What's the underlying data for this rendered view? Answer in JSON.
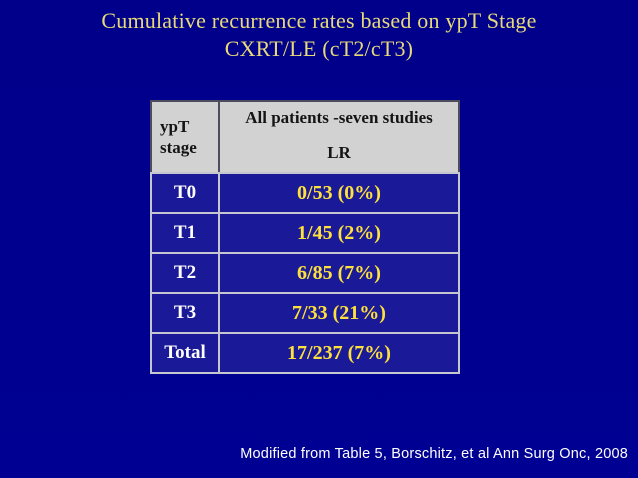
{
  "slide": {
    "title_line1": "Cumulative recurrence rates based on ypT Stage",
    "title_line2": "CXRT/LE (cT2/cT3)",
    "citation": "Modified from Table 5, Borschitz, et al Ann Surg Onc, 2008"
  },
  "table": {
    "header": {
      "col1_line1": "ypT",
      "col1_line2": "stage",
      "col2_line1": "All patients -seven studies",
      "col2_line2": "LR"
    },
    "rows": [
      {
        "stage": "T0",
        "value": "0/53 (0%)"
      },
      {
        "stage": "T1",
        "value": "1/45 (2%)"
      },
      {
        "stage": "T2",
        "value": "6/85 (7%)"
      },
      {
        "stage": "T3",
        "value": "7/33 (21%)"
      },
      {
        "stage": "Total",
        "value": "17/237 (7%)"
      }
    ]
  },
  "colors": {
    "slide_background": "#00008e",
    "cell_blue": "#1a1a99",
    "header_gray": "#d2d2d2",
    "title_yellow": "#e7da78",
    "value_yellow": "#ffe13b",
    "stage_text": "#ffffff",
    "citation_text": "#ffffff",
    "body_border": "#c6c6d0",
    "header_border": "#4c4c5e"
  },
  "chart_data": {
    "type": "table",
    "title": "Cumulative recurrence rates based on ypT Stage CXRT/LE (cT2/cT3)",
    "columns": [
      "ypT stage",
      "All patients -seven studies LR"
    ],
    "categories": [
      "T0",
      "T1",
      "T2",
      "T3",
      "Total"
    ],
    "values": [
      "0/53 (0%)",
      "1/45 (2%)",
      "6/85 (7%)",
      "7/33 (21%)",
      "17/237 (7%)"
    ]
  }
}
